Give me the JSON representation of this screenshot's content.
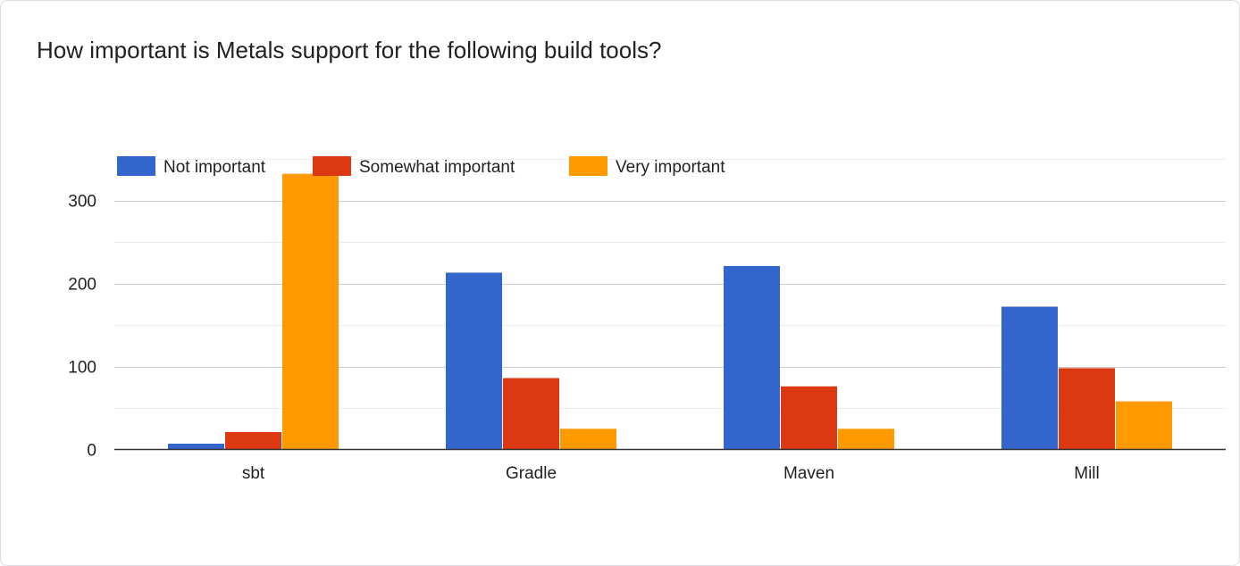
{
  "question": "How important is Metals support for the following build tools?",
  "chart_data": {
    "type": "bar",
    "title": "",
    "xlabel": "",
    "ylabel": "",
    "categories": [
      "sbt",
      "Gradle",
      "Maven",
      "Mill"
    ],
    "series": [
      {
        "name": "Not important",
        "color": "#3366cc",
        "values": [
          7,
          213,
          221,
          172
        ]
      },
      {
        "name": "Somewhat important",
        "color": "#dc3912",
        "values": [
          21,
          86,
          76,
          98
        ]
      },
      {
        "name": "Very important",
        "color": "#ff9900",
        "values": [
          332,
          25,
          25,
          58
        ]
      }
    ],
    "ylim": [
      0,
      350
    ],
    "yticks": [
      0,
      100,
      200,
      300
    ],
    "grid": true,
    "legend_position": "top"
  }
}
